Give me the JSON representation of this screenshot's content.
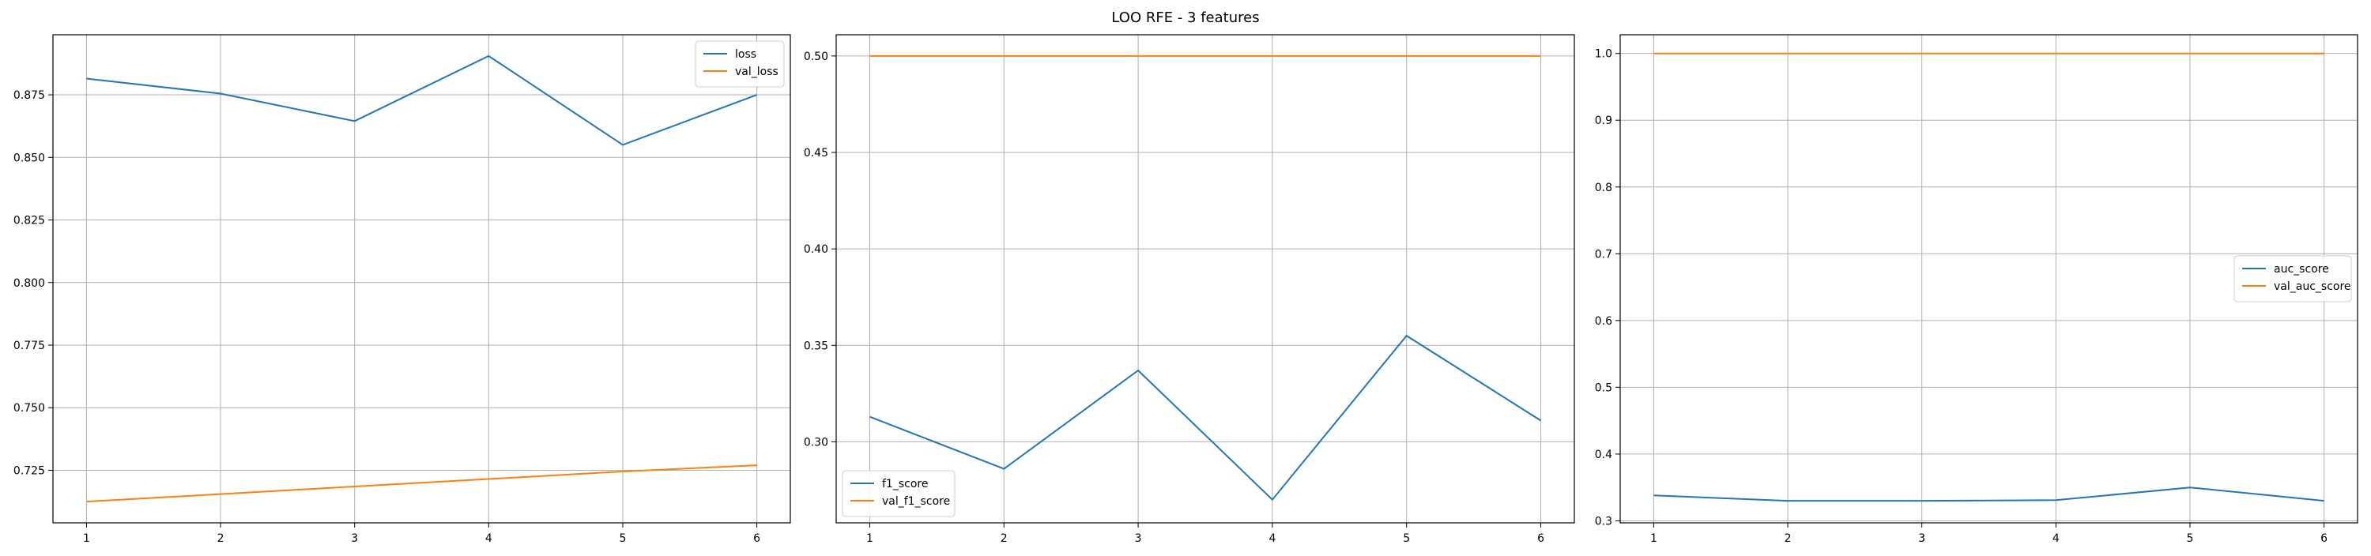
{
  "figure": {
    "title": "LOO RFE - 3 features"
  },
  "chart_data": [
    {
      "type": "line",
      "x": [
        1,
        2,
        3,
        4,
        5,
        6
      ],
      "xlim": [
        0.75,
        6.25
      ],
      "ylim": [
        0.704,
        0.899
      ],
      "xticks": [
        "1",
        "2",
        "3",
        "4",
        "5",
        "6"
      ],
      "yticks": [
        0.725,
        0.75,
        0.775,
        0.8,
        0.825,
        0.85,
        0.875
      ],
      "ytick_labels": [
        "0.725",
        "0.750",
        "0.775",
        "0.800",
        "0.825",
        "0.850",
        "0.875"
      ],
      "grid": true,
      "legend_position": "top-right",
      "series": [
        {
          "name": "loss",
          "color": "#1f77b4",
          "values": [
            0.8815,
            0.8755,
            0.8645,
            0.8905,
            0.855,
            0.875
          ]
        },
        {
          "name": "val_loss",
          "color": "#ff7f0e",
          "values": [
            0.7125,
            0.7155,
            0.7185,
            0.7215,
            0.7245,
            0.727
          ]
        }
      ]
    },
    {
      "type": "line",
      "x": [
        1,
        2,
        3,
        4,
        5,
        6
      ],
      "xlim": [
        0.75,
        6.25
      ],
      "ylim": [
        0.258,
        0.511
      ],
      "xticks": [
        "1",
        "2",
        "3",
        "4",
        "5",
        "6"
      ],
      "yticks": [
        0.3,
        0.35,
        0.4,
        0.45,
        0.5
      ],
      "ytick_labels": [
        "0.30",
        "0.35",
        "0.40",
        "0.45",
        "0.50"
      ],
      "grid": true,
      "legend_position": "bottom-left",
      "series": [
        {
          "name": "f1_score",
          "color": "#1f77b4",
          "values": [
            0.313,
            0.286,
            0.337,
            0.27,
            0.355,
            0.311
          ]
        },
        {
          "name": "val_f1_score",
          "color": "#ff7f0e",
          "values": [
            0.5,
            0.5,
            0.5,
            0.5,
            0.5,
            0.5
          ]
        }
      ]
    },
    {
      "type": "line",
      "x": [
        1,
        2,
        3,
        4,
        5,
        6
      ],
      "xlim": [
        0.75,
        6.25
      ],
      "ylim": [
        0.297,
        1.028
      ],
      "xticks": [
        "1",
        "2",
        "3",
        "4",
        "5",
        "6"
      ],
      "yticks": [
        0.3,
        0.4,
        0.5,
        0.6,
        0.7,
        0.8,
        0.9,
        1.0
      ],
      "ytick_labels": [
        "0.3",
        "0.4",
        "0.5",
        "0.6",
        "0.7",
        "0.8",
        "0.9",
        "1.0"
      ],
      "grid": true,
      "legend_position": "center-right",
      "series": [
        {
          "name": "auc_score",
          "color": "#1f77b4",
          "values": [
            0.338,
            0.33,
            0.33,
            0.331,
            0.35,
            0.33
          ]
        },
        {
          "name": "val_auc_score",
          "color": "#ff7f0e",
          "values": [
            1.0,
            1.0,
            1.0,
            1.0,
            1.0,
            1.0
          ]
        }
      ]
    }
  ]
}
